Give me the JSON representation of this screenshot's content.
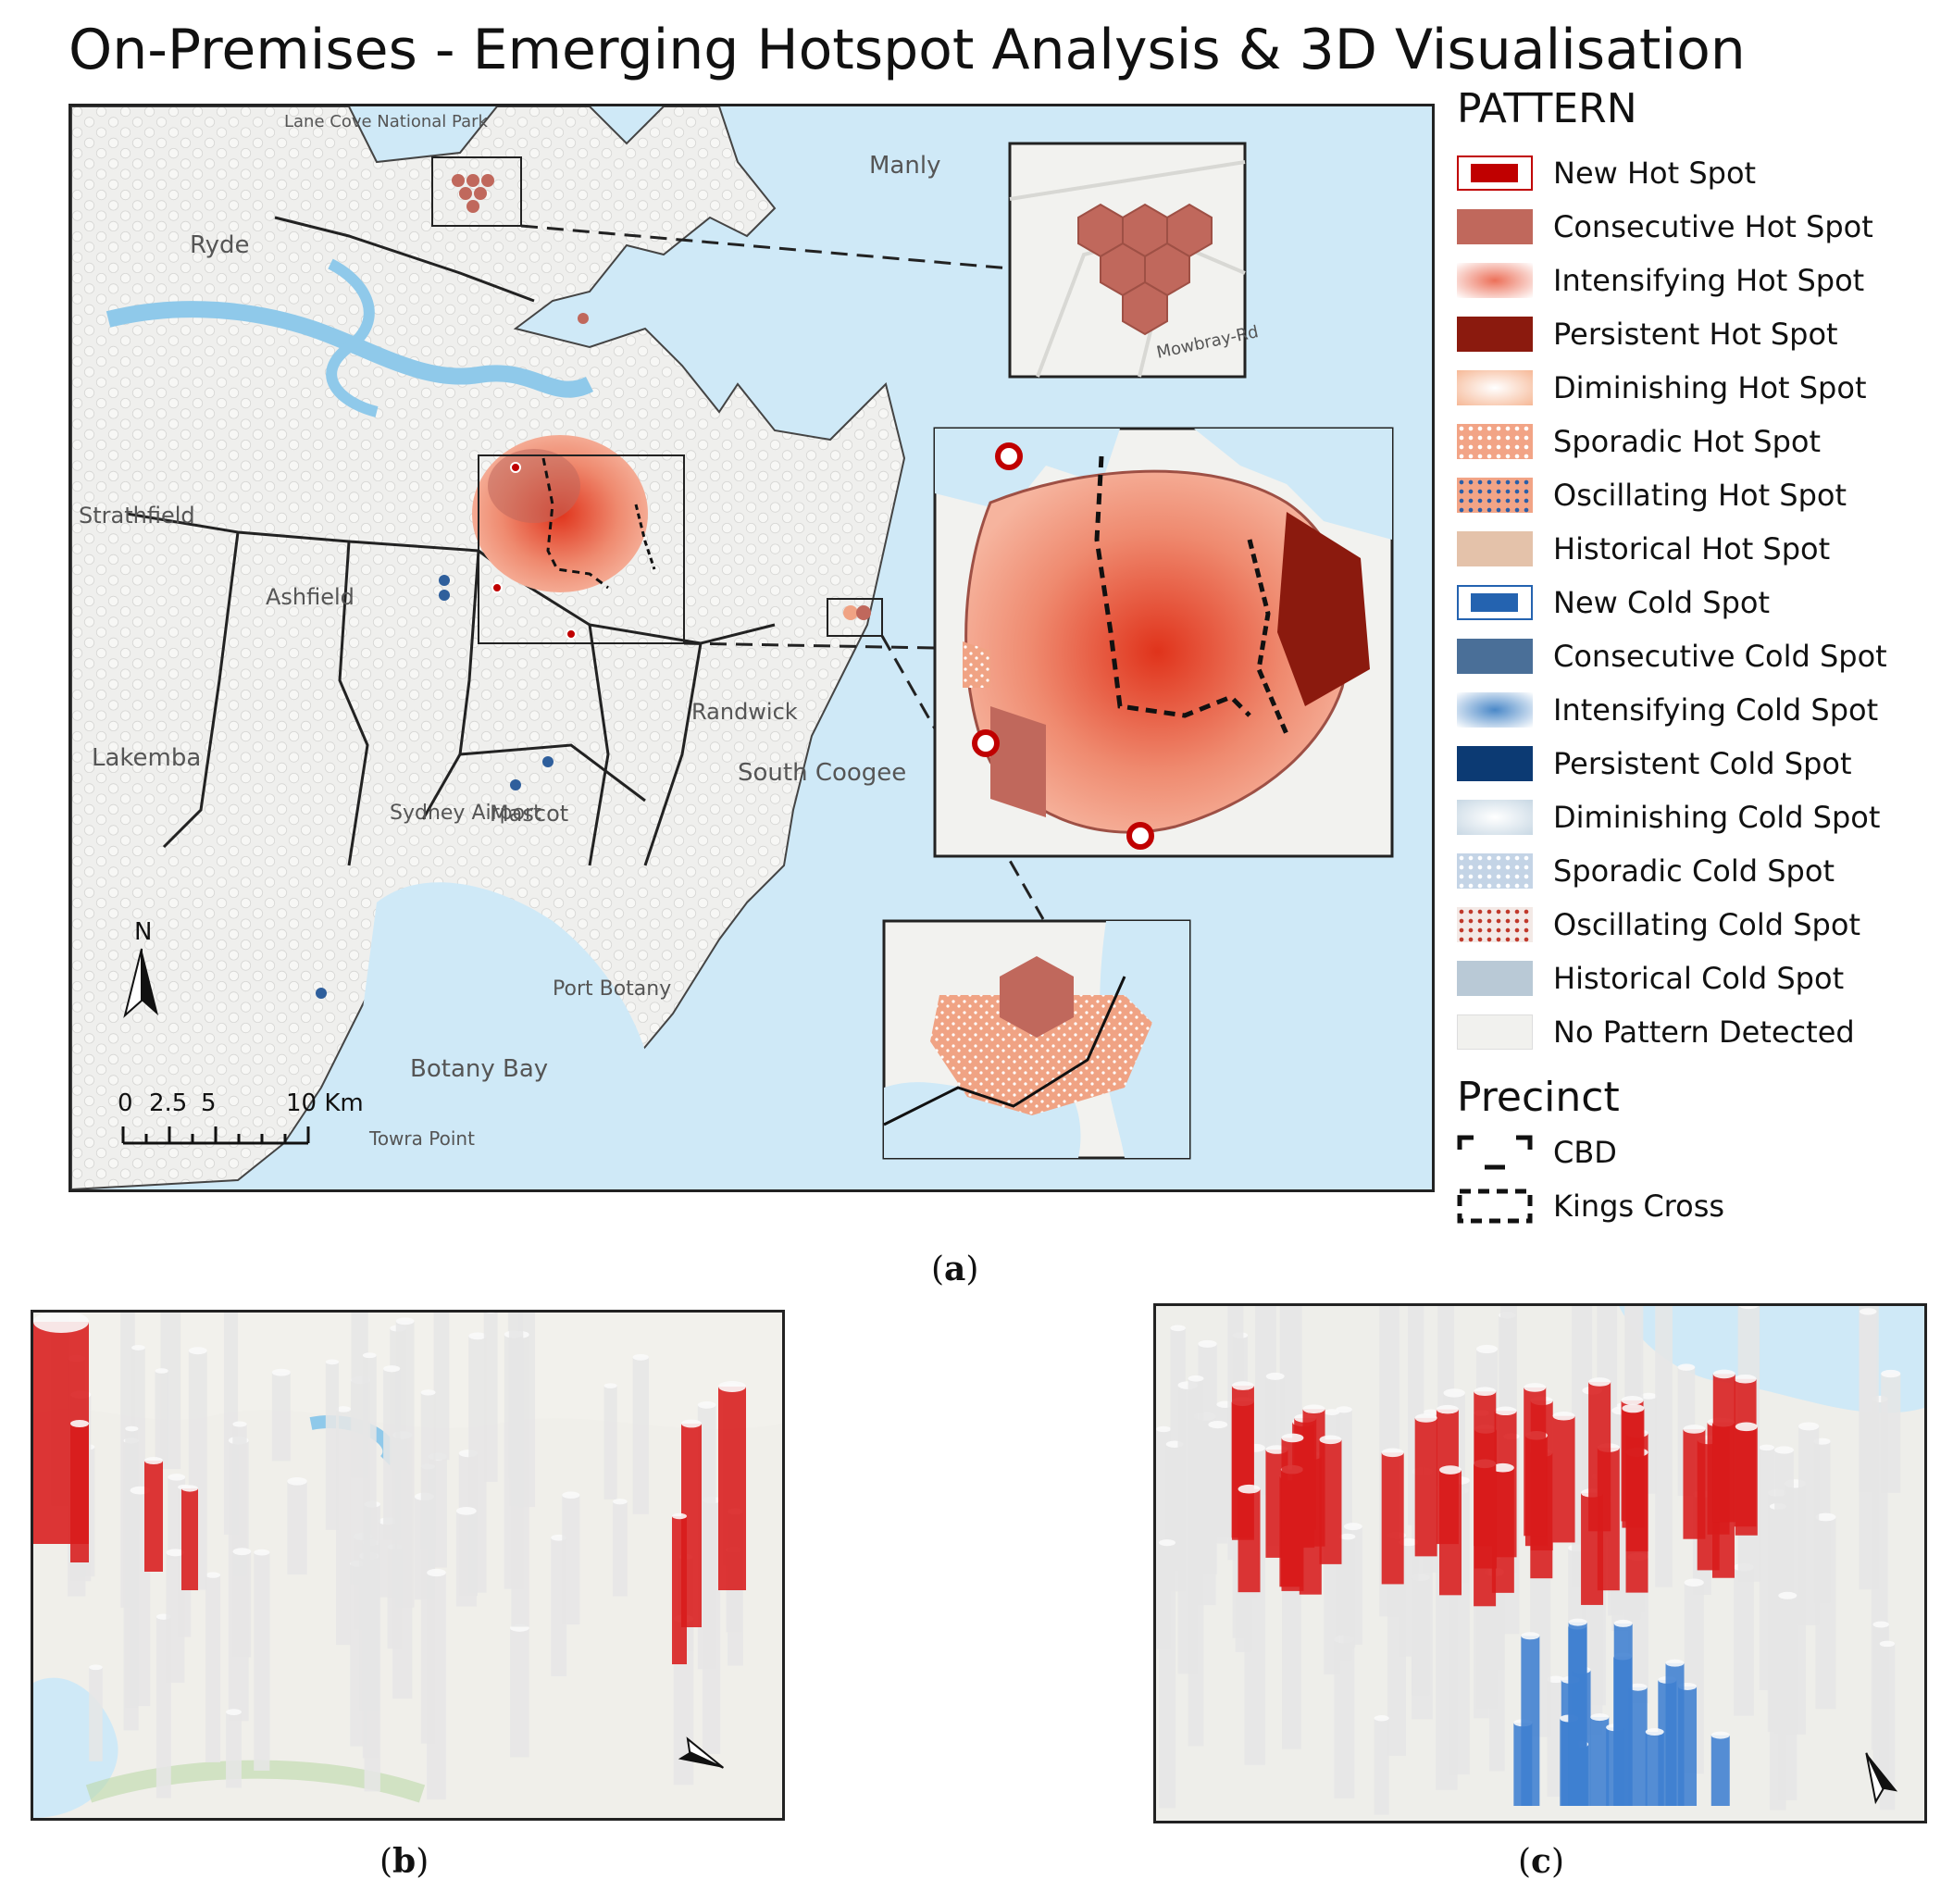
{
  "title": "On-Premises  - Emerging Hotspot Analysis & 3D Visualisation",
  "legend": {
    "pattern_title": "PATTERN",
    "items": [
      {
        "label": "New Hot Spot",
        "color": "#c00000",
        "style": "outlined"
      },
      {
        "label": "Consecutive Hot Spot",
        "color": "#c0685c",
        "style": "solid"
      },
      {
        "label": "Intensifying Hot Spot",
        "color": "#ec7059",
        "style": "radial"
      },
      {
        "label": "Persistent Hot Spot",
        "color": "#8b1a0e",
        "style": "solid"
      },
      {
        "label": "Diminishing Hot Spot",
        "color": "#f6b896",
        "style": "radial-light"
      },
      {
        "label": "Sporadic Hot Spot",
        "color": "#f2a486",
        "style": "dotted-white"
      },
      {
        "label": "Oscillating Hot Spot",
        "color": "#f2a486",
        "style": "dotted-blue"
      },
      {
        "label": "Historical Hot Spot",
        "color": "#e4c2aa",
        "style": "solid"
      },
      {
        "label": "New Cold Spot",
        "color": "#2463b0",
        "style": "outlined"
      },
      {
        "label": "Consecutive Cold Spot",
        "color": "#4a6f98",
        "style": "solid"
      },
      {
        "label": "Intensifying Cold Spot",
        "color": "#4a88c8",
        "style": "radial"
      },
      {
        "label": "Persistent Cold Spot",
        "color": "#0c3a73",
        "style": "solid"
      },
      {
        "label": "Diminishing Cold Spot",
        "color": "#c8d8e4",
        "style": "radial-light"
      },
      {
        "label": "Sporadic Cold Spot",
        "color": "#c4d4e6",
        "style": "dotted-white"
      },
      {
        "label": "Oscillating Cold Spot",
        "color": "#c0685c",
        "style": "dotted-red"
      },
      {
        "label": "Historical Cold Spot",
        "color": "#b9c9d6",
        "style": "solid"
      },
      {
        "label": "No Pattern Detected",
        "color": "#f1f1ee",
        "style": "solid"
      }
    ],
    "precinct_title": "Precinct",
    "precincts": [
      {
        "label": "CBD"
      },
      {
        "label": "Kings Cross"
      }
    ]
  },
  "map_labels": {
    "manly": "Manly",
    "ryde": "Ryde",
    "strathfield": "Strathfield",
    "ashfield": "Ashfield",
    "lakemba": "Lakemba",
    "randwick": "Randwick",
    "south_coogee": "South Coogee",
    "mascot": "Mascot",
    "sydney_airport": "Sydney Airport",
    "port_botany": "Port Botany",
    "botany_bay": "Botany Bay",
    "towra_point": "Towra Point",
    "lane_cove": "Lane Cove National Park",
    "mowbray": "Mowbray-Rd"
  },
  "north_arrow": "N",
  "scale_bar": {
    "ticks": [
      "0",
      "2.5",
      "5",
      "10 Km"
    ]
  },
  "captions": {
    "a": "a",
    "b": "b",
    "c": "c"
  },
  "colors": {
    "water": "#cfe9f7",
    "land": "#efeeec",
    "hot": "#d81b1b",
    "cold": "#3f7fd0",
    "bar": "#e6e6e6"
  }
}
